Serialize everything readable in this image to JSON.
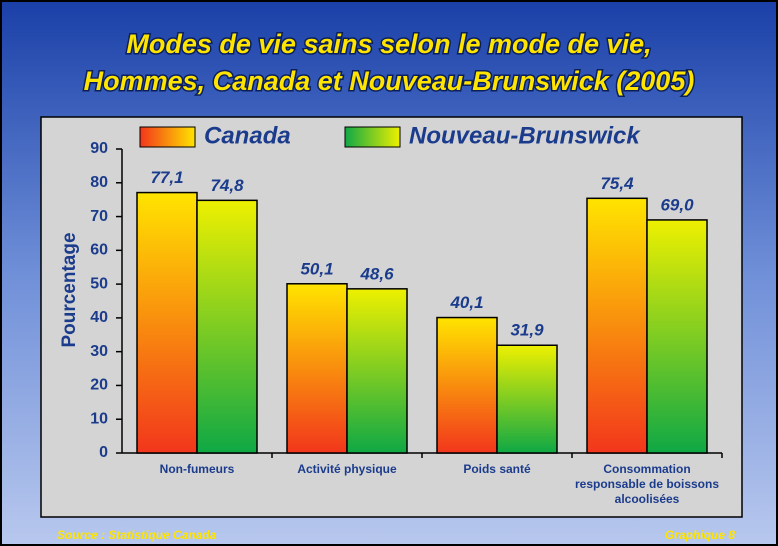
{
  "chart_data": {
    "type": "bar",
    "title": [
      "Modes de vie sains selon le mode de vie,",
      "Hommes, Canada et Nouveau-Brunswick (2005)"
    ],
    "y_label": "Pourcentage",
    "categories": [
      "Non-fumeurs",
      "Activité physique",
      "Poids santé",
      "Consommation responsable de boissons alcoolisées"
    ],
    "series": [
      {
        "name": "Canada",
        "colors": [
          "#ffe400",
          "#f2361c"
        ],
        "values": [
          77.1,
          50.1,
          40.1,
          75.4
        ],
        "value_labels": [
          "77,1",
          "50,1",
          "40,1",
          "75,4"
        ]
      },
      {
        "name": "Nouveau-Brunswick",
        "colors": [
          "#eef000",
          "#0fa845"
        ],
        "values": [
          74.8,
          48.6,
          31.9,
          69.0
        ],
        "value_labels": [
          "74,8",
          "48,6",
          "31,9",
          "69,0"
        ]
      }
    ],
    "ylim": [
      0,
      90
    ],
    "yticks": [
      0,
      10,
      20,
      30,
      40,
      50,
      60,
      70,
      80,
      90
    ],
    "source": "Source : Statistique Canada",
    "figure_label": "Graphique 8"
  }
}
